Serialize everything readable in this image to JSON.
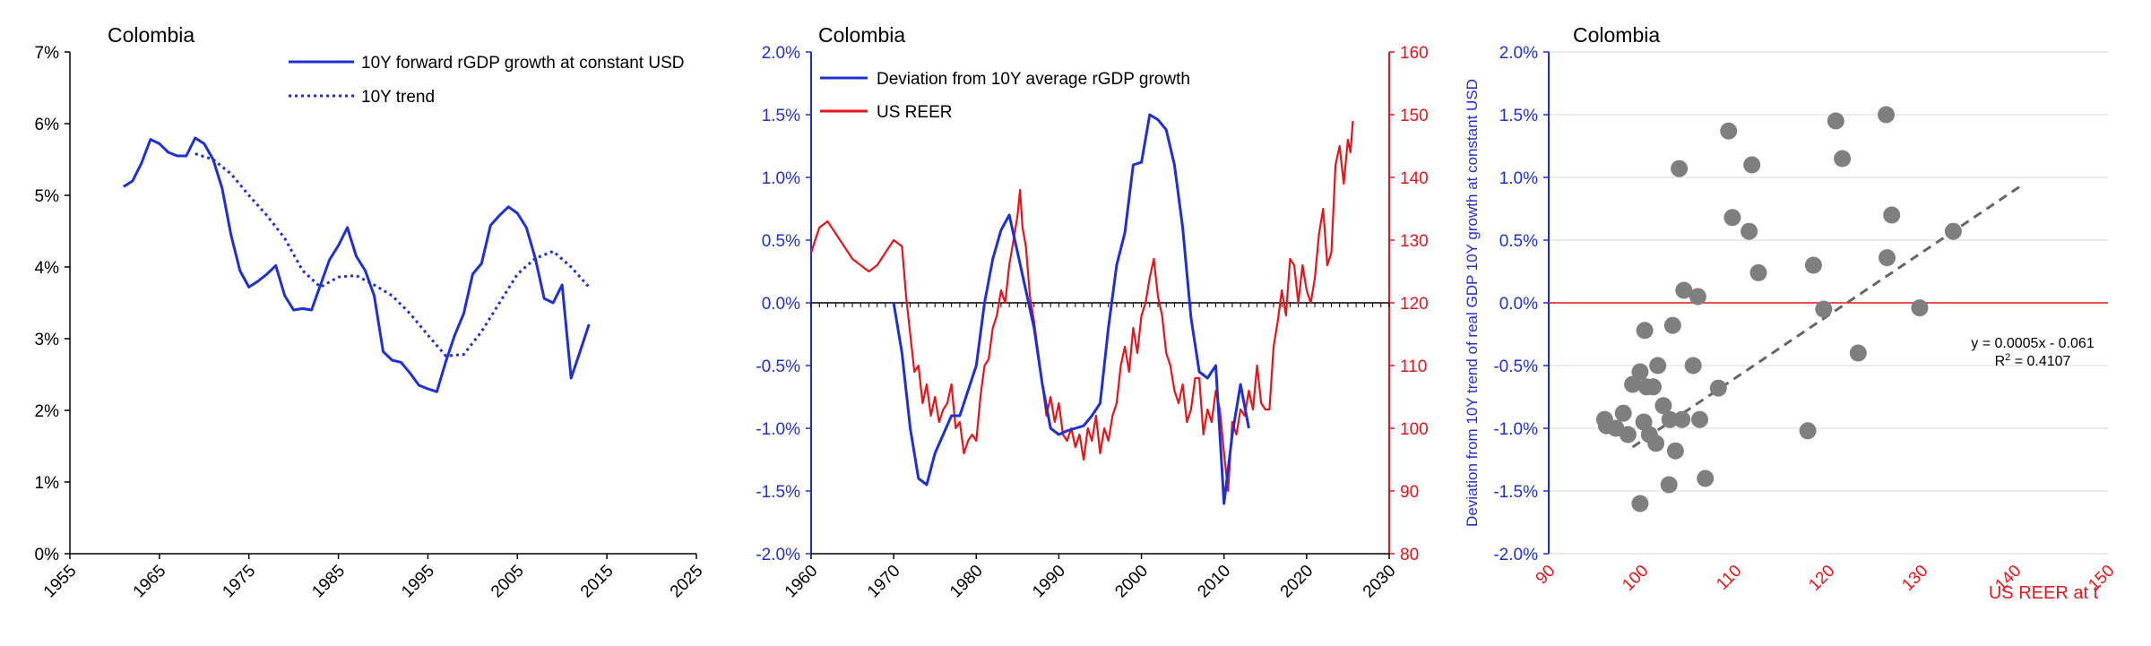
{
  "colors": {
    "blue": "#1f2fd6",
    "red": "#e8141a",
    "gray_point": "#7f7f7f",
    "axis": "#000000",
    "grid": "#d9d9d9",
    "trendline": "#666666"
  },
  "chart_data": [
    {
      "type": "line",
      "title": "Colombia",
      "xlim": [
        1955,
        2025
      ],
      "ylim": [
        0,
        7
      ],
      "x_ticks": [
        "1955",
        "1965",
        "1975",
        "1985",
        "1995",
        "2005",
        "2015",
        "2025"
      ],
      "y_ticks": [
        "0%",
        "1%",
        "2%",
        "3%",
        "4%",
        "5%",
        "6%",
        "7%"
      ],
      "legend": [
        "10Y forward rGDP growth at constant USD",
        "10Y trend"
      ],
      "series": [
        {
          "name": "10Y forward rGDP growth at constant USD",
          "style": "solid",
          "x": [
            1961,
            1962,
            1963,
            1964,
            1965,
            1966,
            1967,
            1968,
            1969,
            1970,
            1971,
            1972,
            1973,
            1974,
            1975,
            1976,
            1977,
            1978,
            1979,
            1980,
            1981,
            1982,
            1983,
            1984,
            1985,
            1986,
            1987,
            1988,
            1989,
            1990,
            1991,
            1992,
            1993,
            1994,
            1995,
            1996,
            1997,
            1998,
            1999,
            2000,
            2001,
            2002,
            2003,
            2004,
            2005,
            2006,
            2007,
            2008,
            2009,
            2010,
            2011,
            2012,
            2013
          ],
          "values": [
            5.12,
            5.2,
            5.45,
            5.78,
            5.72,
            5.6,
            5.55,
            5.55,
            5.8,
            5.72,
            5.5,
            5.1,
            4.45,
            3.95,
            3.72,
            3.8,
            3.9,
            4.02,
            3.6,
            3.4,
            3.42,
            3.4,
            3.75,
            4.1,
            4.3,
            4.55,
            4.15,
            3.95,
            3.6,
            2.82,
            2.7,
            2.67,
            2.52,
            2.35,
            2.3,
            2.26,
            2.68,
            3.05,
            3.35,
            3.9,
            4.05,
            4.58,
            4.72,
            4.84,
            4.75,
            4.55,
            4.12,
            3.56,
            3.5,
            3.75,
            2.45,
            2.82,
            3.2
          ]
        },
        {
          "name": "10Y trend",
          "style": "dotted",
          "x": [
            1969,
            1971,
            1973,
            1975,
            1977,
            1979,
            1981,
            1983,
            1985,
            1987,
            1989,
            1991,
            1993,
            1995,
            1997,
            1999,
            2001,
            2003,
            2005,
            2007,
            2009,
            2011,
            2013
          ],
          "values": [
            5.58,
            5.5,
            5.3,
            5.0,
            4.72,
            4.4,
            3.95,
            3.72,
            3.86,
            3.88,
            3.75,
            3.6,
            3.35,
            3.05,
            2.76,
            2.78,
            3.1,
            3.5,
            3.9,
            4.12,
            4.22,
            4.0,
            3.72
          ]
        }
      ]
    },
    {
      "type": "line",
      "title": "Colombia",
      "xlim": [
        1960,
        2030
      ],
      "ylim_left": [
        -2.0,
        2.0
      ],
      "ylim_right": [
        80,
        160
      ],
      "x_ticks": [
        "1960",
        "1970",
        "1980",
        "1990",
        "2000",
        "2010",
        "2020",
        "2030"
      ],
      "y_ticks_left": [
        "-2.0%",
        "-1.5%",
        "-1.0%",
        "-0.5%",
        "0.0%",
        "0.5%",
        "1.0%",
        "1.5%",
        "2.0%"
      ],
      "y_ticks_right": [
        "80",
        "90",
        "100",
        "110",
        "120",
        "130",
        "140",
        "150",
        "160"
      ],
      "legend": [
        "Deviation from 10Y average rGDP growth",
        "US REER"
      ],
      "series": [
        {
          "name": "Deviation from 10Y average rGDP growth",
          "axis": "left",
          "x": [
            1970,
            1971,
            1972,
            1973,
            1974,
            1975,
            1976,
            1977,
            1978,
            1979,
            1980,
            1981,
            1982,
            1983,
            1984,
            1985,
            1986,
            1987,
            1988,
            1989,
            1990,
            1991,
            1992,
            1993,
            1994,
            1995,
            1996,
            1997,
            1998,
            1999,
            2000,
            2001,
            2002,
            2003,
            2004,
            2005,
            2006,
            2007,
            2008,
            2009,
            2010,
            2011,
            2012,
            2013
          ],
          "values": [
            0.0,
            -0.4,
            -1.0,
            -1.4,
            -1.45,
            -1.2,
            -1.05,
            -0.9,
            -0.9,
            -0.7,
            -0.5,
            0.0,
            0.35,
            0.58,
            0.7,
            0.4,
            0.1,
            -0.2,
            -0.65,
            -1.0,
            -1.05,
            -1.02,
            -1.0,
            -0.98,
            -0.9,
            -0.8,
            -0.2,
            0.3,
            0.56,
            1.1,
            1.12,
            1.5,
            1.46,
            1.38,
            1.1,
            0.6,
            -0.12,
            -0.55,
            -0.6,
            -0.5,
            -1.6,
            -1.05,
            -0.65,
            -1.0
          ]
        },
        {
          "name": "US REER",
          "axis": "right",
          "x": [
            1960.0,
            1961.0,
            1962.0,
            1963.0,
            1964.0,
            1965.0,
            1966.0,
            1967.0,
            1968.0,
            1969.0,
            1970.0,
            1971.0,
            1971.5,
            1972.0,
            1972.5,
            1973.0,
            1973.5,
            1974.0,
            1974.5,
            1975.0,
            1975.5,
            1976.0,
            1976.5,
            1977.0,
            1977.5,
            1978.0,
            1978.5,
            1979.0,
            1979.5,
            1980.0,
            1980.5,
            1981.0,
            1981.5,
            1982.0,
            1982.5,
            1983.0,
            1983.5,
            1984.0,
            1984.5,
            1985.0,
            1985.3,
            1985.6,
            1986.0,
            1986.5,
            1987.0,
            1987.5,
            1988.0,
            1988.5,
            1989.0,
            1989.5,
            1990.0,
            1990.5,
            1991.0,
            1991.5,
            1992.0,
            1992.5,
            1993.0,
            1993.5,
            1994.0,
            1994.5,
            1995.0,
            1995.5,
            1996.0,
            1996.5,
            1997.0,
            1997.5,
            1998.0,
            1998.5,
            1999.0,
            1999.5,
            2000.0,
            2000.5,
            2001.0,
            2001.5,
            2002.0,
            2002.5,
            2003.0,
            2003.5,
            2004.0,
            2004.5,
            2005.0,
            2005.5,
            2006.0,
            2006.5,
            2007.0,
            2007.5,
            2008.0,
            2008.5,
            2009.0,
            2009.5,
            2010.0,
            2010.5,
            2011.0,
            2011.5,
            2012.0,
            2012.5,
            2013.0,
            2013.5,
            2014.0,
            2014.5,
            2015.0,
            2015.5,
            2016.0,
            2016.5,
            2017.0,
            2017.5,
            2018.0,
            2018.5,
            2019.0,
            2019.5,
            2020.0,
            2020.5,
            2021.0,
            2021.5,
            2022.0,
            2022.5,
            2023.0,
            2023.5,
            2024.0,
            2024.5,
            2025.0,
            2025.3,
            2025.6
          ],
          "values": [
            128,
            132,
            133,
            131,
            129,
            127,
            126,
            125,
            126,
            128,
            130,
            129,
            121,
            115,
            109,
            110,
            104,
            107,
            102,
            105,
            101,
            103,
            104,
            107,
            100,
            101,
            96,
            98,
            99,
            98,
            105,
            110,
            111,
            116,
            118,
            122,
            120,
            126,
            130,
            134,
            138,
            132,
            129,
            121,
            117,
            112,
            107,
            102,
            105,
            101,
            104,
            99,
            98,
            100,
            97,
            99,
            95,
            100,
            98,
            102,
            96,
            100,
            98,
            102,
            104,
            110,
            113,
            109,
            116,
            112,
            118,
            120,
            124,
            127,
            121,
            118,
            112,
            110,
            106,
            104,
            107,
            101,
            103,
            108,
            108,
            99,
            103,
            101,
            106,
            103,
            96,
            90,
            101,
            99,
            103,
            102,
            106,
            103,
            110,
            104,
            103,
            103,
            113,
            117,
            122,
            118,
            127,
            126,
            120,
            126,
            122,
            120,
            124,
            131,
            135,
            126,
            128,
            142,
            145,
            139,
            146,
            144,
            149
          ]
        }
      ]
    },
    {
      "type": "scatter",
      "title": "Colombia",
      "xlabel": "US REER at t",
      "ylabel": "Deviation from 10Y trend of real GDP 10Y growth at constant USD",
      "xlim": [
        90,
        150
      ],
      "ylim": [
        -2.0,
        2.0
      ],
      "x_ticks": [
        "90",
        "100",
        "110",
        "120",
        "130",
        "140",
        "150"
      ],
      "y_ticks": [
        "-2.0%",
        "-1.5%",
        "-1.0%",
        "-0.5%",
        "0.0%",
        "0.5%",
        "1.0%",
        "1.5%",
        "2.0%"
      ],
      "trendline": {
        "slope": 0.0005,
        "intercept": -0.061,
        "x_range": [
          99,
          141
        ]
      },
      "annotation": {
        "equation": "y = 0.0005x - 0.061",
        "r2_prefix": "R",
        "r2_sup": "2",
        "r2_value": " = 0.4107"
      },
      "points": [
        {
          "x": 96.0,
          "y": -0.93
        },
        {
          "x": 96.2,
          "y": -0.98
        },
        {
          "x": 97.2,
          "y": -1.0
        },
        {
          "x": 98.0,
          "y": -0.88
        },
        {
          "x": 98.5,
          "y": -1.05
        },
        {
          "x": 99.0,
          "y": -0.65
        },
        {
          "x": 99.8,
          "y": -0.55
        },
        {
          "x": 100.2,
          "y": -0.95
        },
        {
          "x": 100.3,
          "y": -0.22
        },
        {
          "x": 100.5,
          "y": -0.67
        },
        {
          "x": 100.8,
          "y": -1.05
        },
        {
          "x": 101.2,
          "y": -0.67
        },
        {
          "x": 101.5,
          "y": -1.12
        },
        {
          "x": 101.7,
          "y": -0.5
        },
        {
          "x": 102.3,
          "y": -0.82
        },
        {
          "x": 103.0,
          "y": -0.93
        },
        {
          "x": 103.3,
          "y": -0.18
        },
        {
          "x": 103.6,
          "y": -1.18
        },
        {
          "x": 104.0,
          "y": 1.07
        },
        {
          "x": 104.3,
          "y": -0.93
        },
        {
          "x": 104.5,
          "y": 0.1
        },
        {
          "x": 105.5,
          "y": -0.5
        },
        {
          "x": 106.0,
          "y": 0.05
        },
        {
          "x": 106.2,
          "y": -0.93
        },
        {
          "x": 106.8,
          "y": -1.4
        },
        {
          "x": 99.8,
          "y": -1.6
        },
        {
          "x": 102.9,
          "y": -1.45
        },
        {
          "x": 108.2,
          "y": -0.68
        },
        {
          "x": 109.3,
          "y": 1.37
        },
        {
          "x": 109.7,
          "y": 0.68
        },
        {
          "x": 111.5,
          "y": 0.57
        },
        {
          "x": 111.8,
          "y": 1.1
        },
        {
          "x": 112.5,
          "y": 0.24
        },
        {
          "x": 117.8,
          "y": -1.02
        },
        {
          "x": 118.4,
          "y": 0.3
        },
        {
          "x": 119.5,
          "y": -0.05
        },
        {
          "x": 120.8,
          "y": 1.45
        },
        {
          "x": 121.5,
          "y": 1.15
        },
        {
          "x": 123.2,
          "y": -0.4
        },
        {
          "x": 126.2,
          "y": 1.5
        },
        {
          "x": 126.3,
          "y": 0.36
        },
        {
          "x": 126.8,
          "y": 0.7
        },
        {
          "x": 129.8,
          "y": -0.04
        },
        {
          "x": 133.4,
          "y": 0.57
        }
      ]
    }
  ]
}
